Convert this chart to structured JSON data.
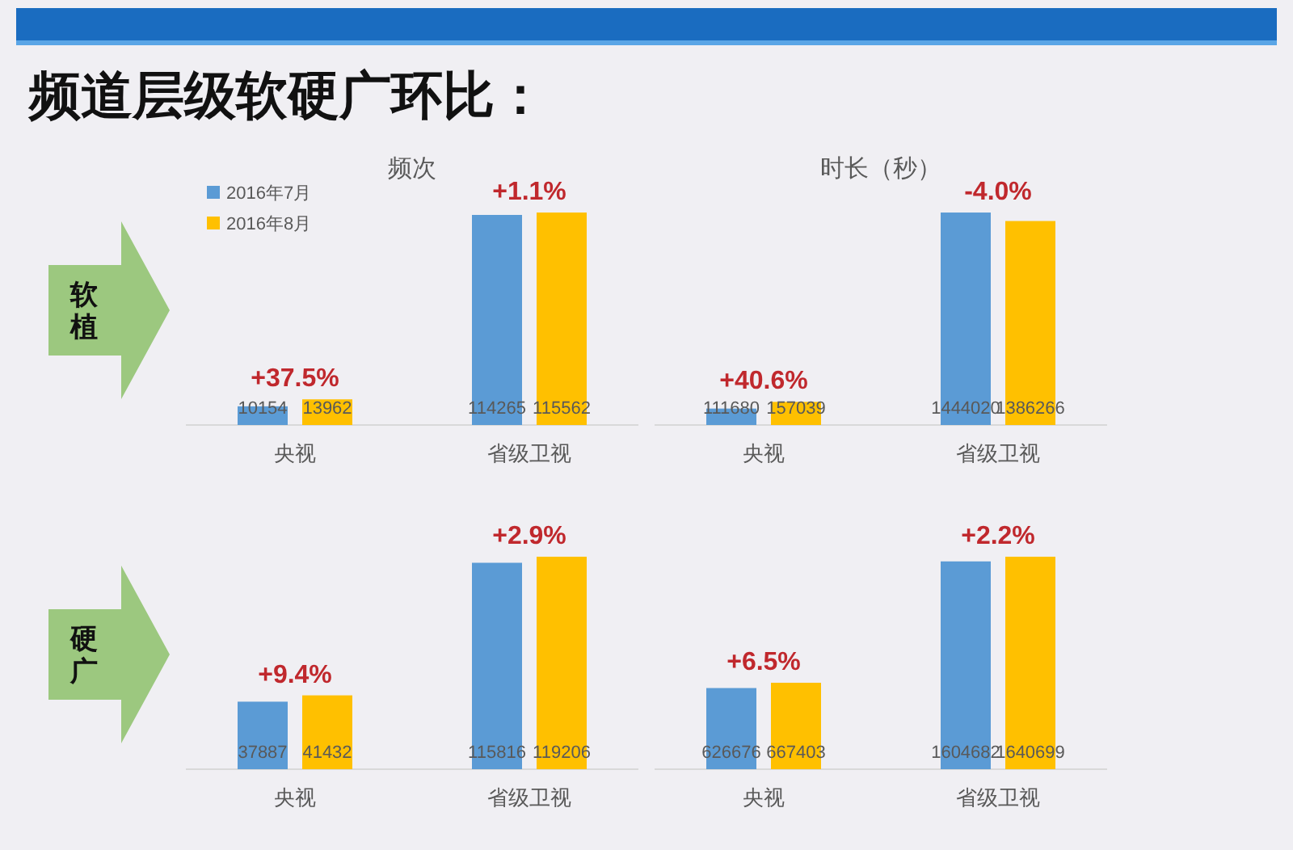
{
  "chart_data": [
    {
      "type": "other",
      "title": "频道层级软硬广环比："
    },
    {
      "type": "bar",
      "title": "频次",
      "categories": [
        "央视",
        "省级卫视"
      ],
      "legend": "top left",
      "data_labels": true,
      "series": [
        {
          "name": "2016年7月",
          "color": "#5b9bd5",
          "values": [
            10154,
            114265
          ]
        },
        {
          "name": "2016年8月",
          "color": "#ffc000",
          "values": [
            13962,
            115562
          ]
        }
      ],
      "annotations": [
        "软植",
        {
          "text": "+37.5%",
          "x": "央视",
          "y": 13962
        },
        {
          "text": "+1.1%",
          "x": "省级卫视",
          "y": 115562
        }
      ]
    },
    {
      "type": "bar",
      "title": "时长（秒）",
      "categories": [
        "央视",
        "省级卫视"
      ],
      "data_labels": true,
      "series": [
        {
          "color": "#5b9bd5",
          "values": [
            111680,
            1444020
          ]
        },
        {
          "color": "#ffc000",
          "values": [
            157039,
            1386266
          ]
        }
      ],
      "annotations": [
        {
          "text": "+40.6%",
          "x": "央视",
          "y": 157039
        },
        {
          "text": "-4.0%",
          "x": "省级卫视",
          "y": 1444020
        }
      ]
    },
    {
      "type": "bar",
      "categories": [
        "央视",
        "省级卫视"
      ],
      "data_labels": true,
      "series": [
        {
          "color": "#5b9bd5",
          "values": [
            37887,
            115816
          ]
        },
        {
          "color": "#ffc000",
          "values": [
            41432,
            119206
          ]
        }
      ],
      "annotations": [
        "硬广",
        {
          "text": "+9.4%",
          "x": "央视",
          "y": 41432
        },
        {
          "text": "+2.9%",
          "x": "省级卫视",
          "y": 119206
        }
      ]
    },
    {
      "type": "bar",
      "categories": [
        "央视",
        "省级卫视"
      ],
      "data_labels": true,
      "series": [
        {
          "color": "#5b9bd5",
          "values": [
            626676,
            1604682
          ]
        },
        {
          "color": "#ffc000",
          "values": [
            667403,
            1640699
          ]
        }
      ],
      "annotations": [
        {
          "text": "+6.5%",
          "x": "央视",
          "y": 667403
        },
        {
          "text": "+2.2%",
          "x": "省级卫视",
          "y": 1640699
        }
      ]
    }
  ]
}
